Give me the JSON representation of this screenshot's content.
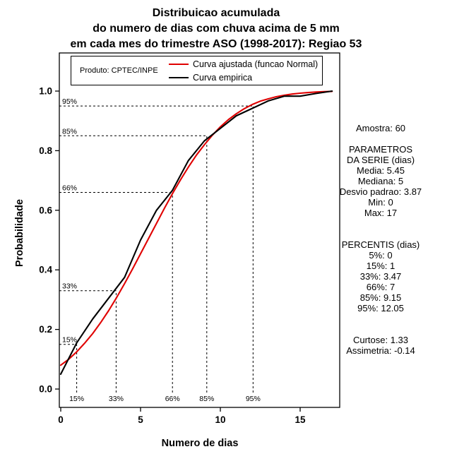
{
  "title": {
    "line1": "Distribuicao acumulada",
    "line2": "do numero de dias com chuva acima de 5 mm",
    "line3": "em cada mes do trimestre ASO (1998-2017): Regiao 53"
  },
  "legend": {
    "product_label": "Produto: CPTEC/INPE",
    "entries": [
      {
        "label": "Curva ajustada (funcao Normal)",
        "color": "#e00000"
      },
      {
        "label": "Curva empirica",
        "color": "#000000"
      }
    ]
  },
  "axes": {
    "ylabel": "Probabilidade",
    "xlabel": "Numero de dias",
    "x_ticks": [
      0,
      5,
      10,
      15
    ],
    "y_ticks": [
      0.0,
      0.2,
      0.4,
      0.6,
      0.8,
      1.0
    ]
  },
  "stats_panel": {
    "lines": [
      "Amostra: 60",
      "",
      "PARAMETROS",
      "DA SERIE (dias)",
      "Media: 5.45",
      "Mediana: 5",
      "Desvio padrao: 3.87",
      "Min: 0",
      "Max: 17",
      "",
      "",
      "PERCENTIS (dias)",
      "5%: 0",
      "15%: 1",
      "33%: 3.47",
      "66%: 7",
      "85%: 9.15",
      "95%: 12.05",
      "",
      "",
      "Curtose: 1.33",
      "Assimetria: -0.14"
    ]
  },
  "chart_data": {
    "type": "line",
    "title": "Distribuicao acumulada do numero de dias com chuva acima de 5 mm em cada mes do trimestre ASO (1998-2017): Regiao 53",
    "xlabel": "Numero de dias",
    "ylabel": "Probabilidade",
    "xlim": [
      0,
      17.5
    ],
    "ylim": [
      0.0,
      1.05
    ],
    "grid": false,
    "legend_position": "top",
    "series": [
      {
        "name": "Curva ajustada (funcao Normal)",
        "color": "#e00000",
        "x": [
          0,
          0.5,
          1,
          1.5,
          2,
          2.5,
          3,
          3.5,
          4,
          4.5,
          5,
          5.5,
          6,
          6.5,
          7,
          7.5,
          8,
          8.5,
          9,
          9.5,
          10,
          10.5,
          11,
          11.5,
          12,
          12.5,
          13,
          13.5,
          14,
          14.5,
          15,
          15.5,
          16,
          16.5,
          17
        ],
        "y": [
          0.08,
          0.1,
          0.125,
          0.154,
          0.186,
          0.223,
          0.263,
          0.307,
          0.354,
          0.403,
          0.454,
          0.505,
          0.556,
          0.607,
          0.656,
          0.702,
          0.745,
          0.785,
          0.82,
          0.852,
          0.88,
          0.904,
          0.924,
          0.941,
          0.955,
          0.966,
          0.974,
          0.981,
          0.986,
          0.99,
          0.993,
          0.995,
          0.997,
          0.998,
          0.999
        ]
      },
      {
        "name": "Curva empirica",
        "color": "#000000",
        "x": [
          0,
          1,
          2,
          3,
          4,
          5,
          6,
          7,
          8,
          9,
          10,
          11,
          12,
          13,
          14,
          15,
          16,
          17
        ],
        "y": [
          0.05,
          0.155,
          0.235,
          0.305,
          0.375,
          0.5,
          0.6,
          0.667,
          0.767,
          0.833,
          0.875,
          0.917,
          0.942,
          0.967,
          0.983,
          0.983,
          0.992,
          1.0
        ]
      }
    ],
    "percentile_guides": [
      {
        "label": "15%",
        "x": 1,
        "p": 0.15
      },
      {
        "label": "33%",
        "x": 3.47,
        "p": 0.33
      },
      {
        "label": "66%",
        "x": 7,
        "p": 0.66
      },
      {
        "label": "85%",
        "x": 9.15,
        "p": 0.85
      },
      {
        "label": "95%",
        "x": 12.05,
        "p": 0.95
      }
    ],
    "sample_size": 60,
    "parameters": {
      "media": 5.45,
      "mediana": 5,
      "desvio_padrao": 3.87,
      "min": 0,
      "max": 17
    },
    "percentis": {
      "5%": 0,
      "15%": 1,
      "33%": 3.47,
      "66%": 7,
      "85%": 9.15,
      "95%": 12.05
    },
    "curtose": 1.33,
    "assimetria": -0.14
  }
}
